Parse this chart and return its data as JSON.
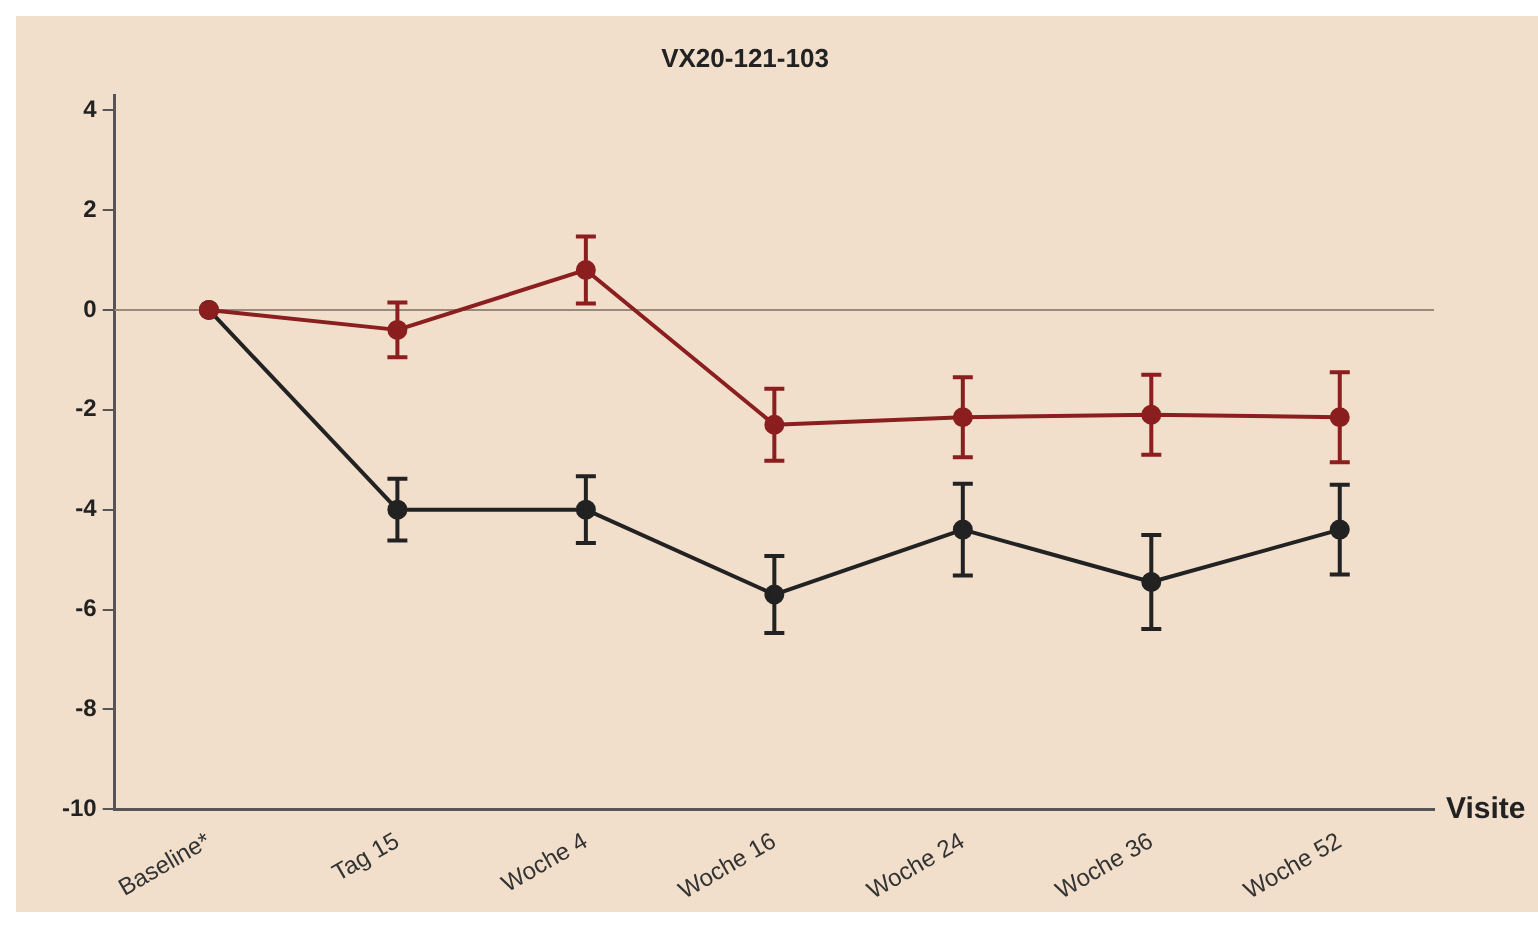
{
  "chart_data": {
    "type": "line",
    "title": "VX20-121-103",
    "xlabel": "Visite",
    "categories": [
      "Baseline*",
      "Tag 15",
      "Woche 4",
      "Woche 16",
      "Woche 24",
      "Woche 36",
      "Woche 52"
    ],
    "ylim": [
      -10,
      4.3
    ],
    "yticks": [
      -10,
      -8,
      -6,
      -4,
      -2,
      0,
      2,
      4
    ],
    "series": [
      {
        "color": "#8b1e1e",
        "values": [
          0,
          -0.4,
          0.8,
          -2.3,
          -2.15,
          -2.1,
          -2.15
        ],
        "errors": [
          null,
          0.55,
          0.67,
          0.72,
          0.8,
          0.8,
          0.9
        ]
      },
      {
        "color": "#222222",
        "values": [
          0,
          -4.0,
          -4.0,
          -5.7,
          -4.4,
          -5.45,
          -4.4
        ],
        "errors": [
          null,
          0.62,
          0.67,
          0.77,
          0.92,
          0.94,
          0.9
        ]
      }
    ],
    "ref_lines": [
      {
        "axis": "y",
        "value": 0,
        "color": "#9a8a7e"
      }
    ],
    "grid": false,
    "legend": false,
    "marker": "circle",
    "line_style": "solid"
  }
}
